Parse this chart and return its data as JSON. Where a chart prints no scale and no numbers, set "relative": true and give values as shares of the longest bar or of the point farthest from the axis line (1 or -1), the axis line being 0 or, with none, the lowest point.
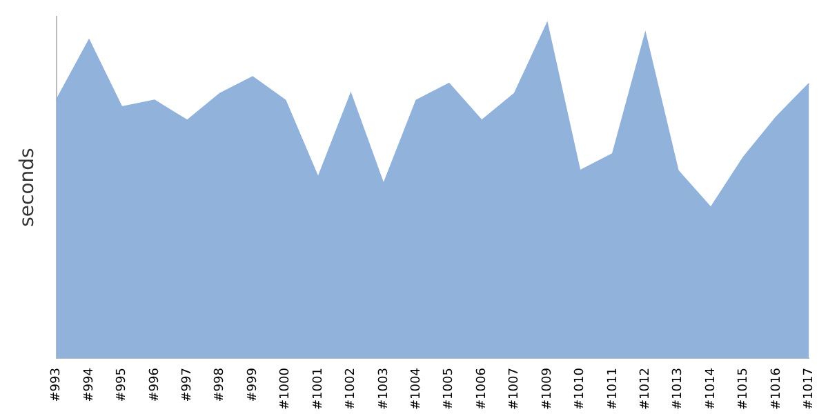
{
  "chart_data": {
    "type": "area",
    "relative": true,
    "ylabel": "seconds",
    "grid": false,
    "legend": false,
    "categories": [
      "#993",
      "#994",
      "#995",
      "#996",
      "#997",
      "#998",
      "#999",
      "#1000",
      "#1001",
      "#1002",
      "#1003",
      "#1004",
      "#1005",
      "#1006",
      "#1007",
      "#1009",
      "#1010",
      "#1011",
      "#1012",
      "#1013",
      "#1014",
      "#1015",
      "#1016",
      "#1017"
    ],
    "series": [
      {
        "color": "#91b2db",
        "values": [
          0.77,
          0.95,
          0.75,
          0.77,
          0.71,
          0.79,
          0.84,
          0.77,
          0.54,
          0.79,
          0.52,
          0.77,
          0.82,
          0.71,
          0.79,
          1,
          0.56,
          0.61,
          0.97,
          0.56,
          0.45,
          0.6,
          0.72,
          0.82
        ]
      }
    ]
  }
}
